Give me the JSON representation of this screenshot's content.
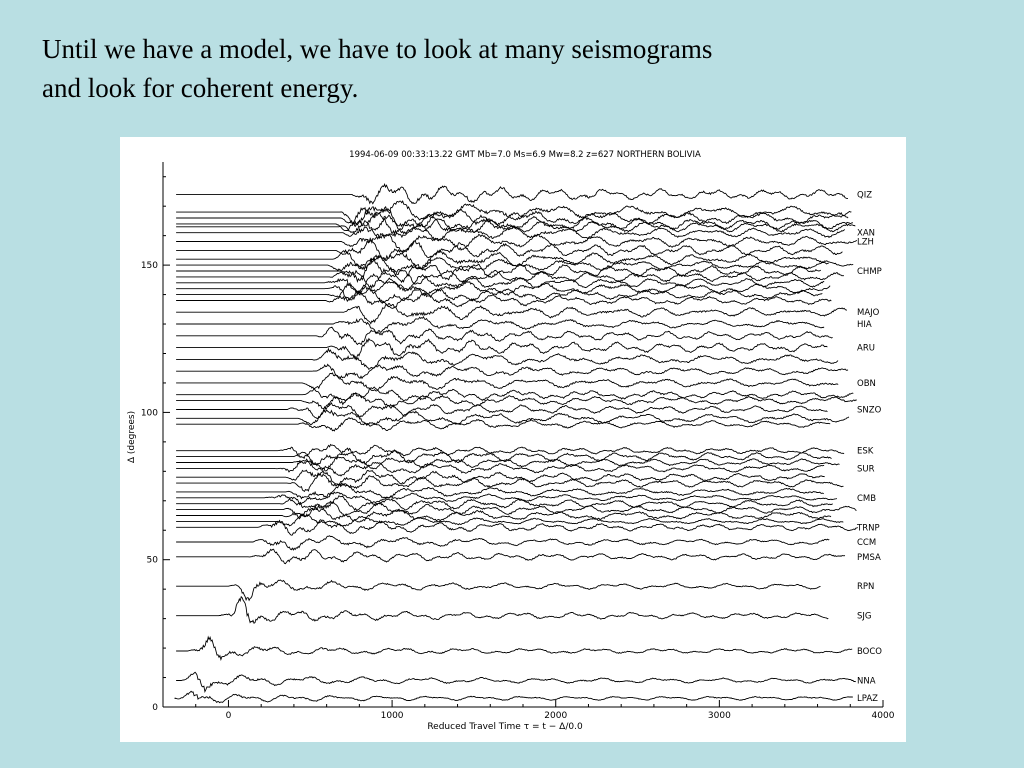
{
  "slide": {
    "text_lines": [
      "Until we have a model, we have to look at many seismograms",
      "and look for coherent energy."
    ]
  },
  "chart_data": {
    "type": "line",
    "title": "1994-06-09 00:33:13.22 GMT Mb=7.0 Ms=6.9 Mw=8.2 z=627 NORTHERN BOLIVIA",
    "xlabel": "Reduced Travel Time τ = t − Δ/0.0",
    "ylabel": "Δ (degrees)",
    "xlim": [
      -400,
      4000
    ],
    "ylim": [
      0,
      185
    ],
    "x_ticks": [
      0,
      1000,
      2000,
      3000,
      4000
    ],
    "x_tick_labels": [
      "0",
      "1000",
      "2000",
      "3000",
      "4000"
    ],
    "y_ticks": [
      0,
      50,
      100,
      150
    ],
    "y_tick_labels": [
      "0",
      "50",
      "100",
      "150"
    ],
    "grid": false,
    "legend": "none",
    "stations": [
      {
        "name": "QIZ",
        "distance": 174,
        "onset": 750
      },
      {
        "name": "XAN",
        "distance": 161,
        "onset": 700
      },
      {
        "name": "LZH",
        "distance": 158,
        "onset": 690
      },
      {
        "name": "CHMP",
        "distance": 148,
        "onset": 680
      },
      {
        "name": "MAJO",
        "distance": 134,
        "onset": 690
      },
      {
        "name": "HIA",
        "distance": 130,
        "onset": 640
      },
      {
        "name": "ARU",
        "distance": 122,
        "onset": 600
      },
      {
        "name": "OBN",
        "distance": 110,
        "onset": 450
      },
      {
        "name": "SNZO",
        "distance": 101,
        "onset": 360
      },
      {
        "name": "ESK",
        "distance": 87,
        "onset": 300
      },
      {
        "name": "SUR",
        "distance": 81,
        "onset": 280
      },
      {
        "name": "CMB",
        "distance": 71,
        "onset": 220
      },
      {
        "name": "TRNP",
        "distance": 61,
        "onset": 180
      },
      {
        "name": "CCM",
        "distance": 56,
        "onset": 150
      },
      {
        "name": "PMSA",
        "distance": 51,
        "onset": 120
      },
      {
        "name": "RPN",
        "distance": 41,
        "onset": 0
      },
      {
        "name": "SJG",
        "distance": 31,
        "onset": -60
      },
      {
        "name": "BOCO",
        "distance": 19,
        "onset": -250
      },
      {
        "name": "NNA",
        "distance": 9,
        "onset": -300
      },
      {
        "name": "LPAZ",
        "distance": 3,
        "onset": -330
      }
    ],
    "unlabeled_trace_distances": [
      168,
      166,
      164,
      163,
      155,
      152,
      150,
      146,
      144,
      142,
      140,
      138,
      126,
      118,
      114,
      106,
      104,
      98,
      96,
      85,
      83,
      78,
      76,
      73,
      69,
      67,
      65,
      63
    ]
  }
}
